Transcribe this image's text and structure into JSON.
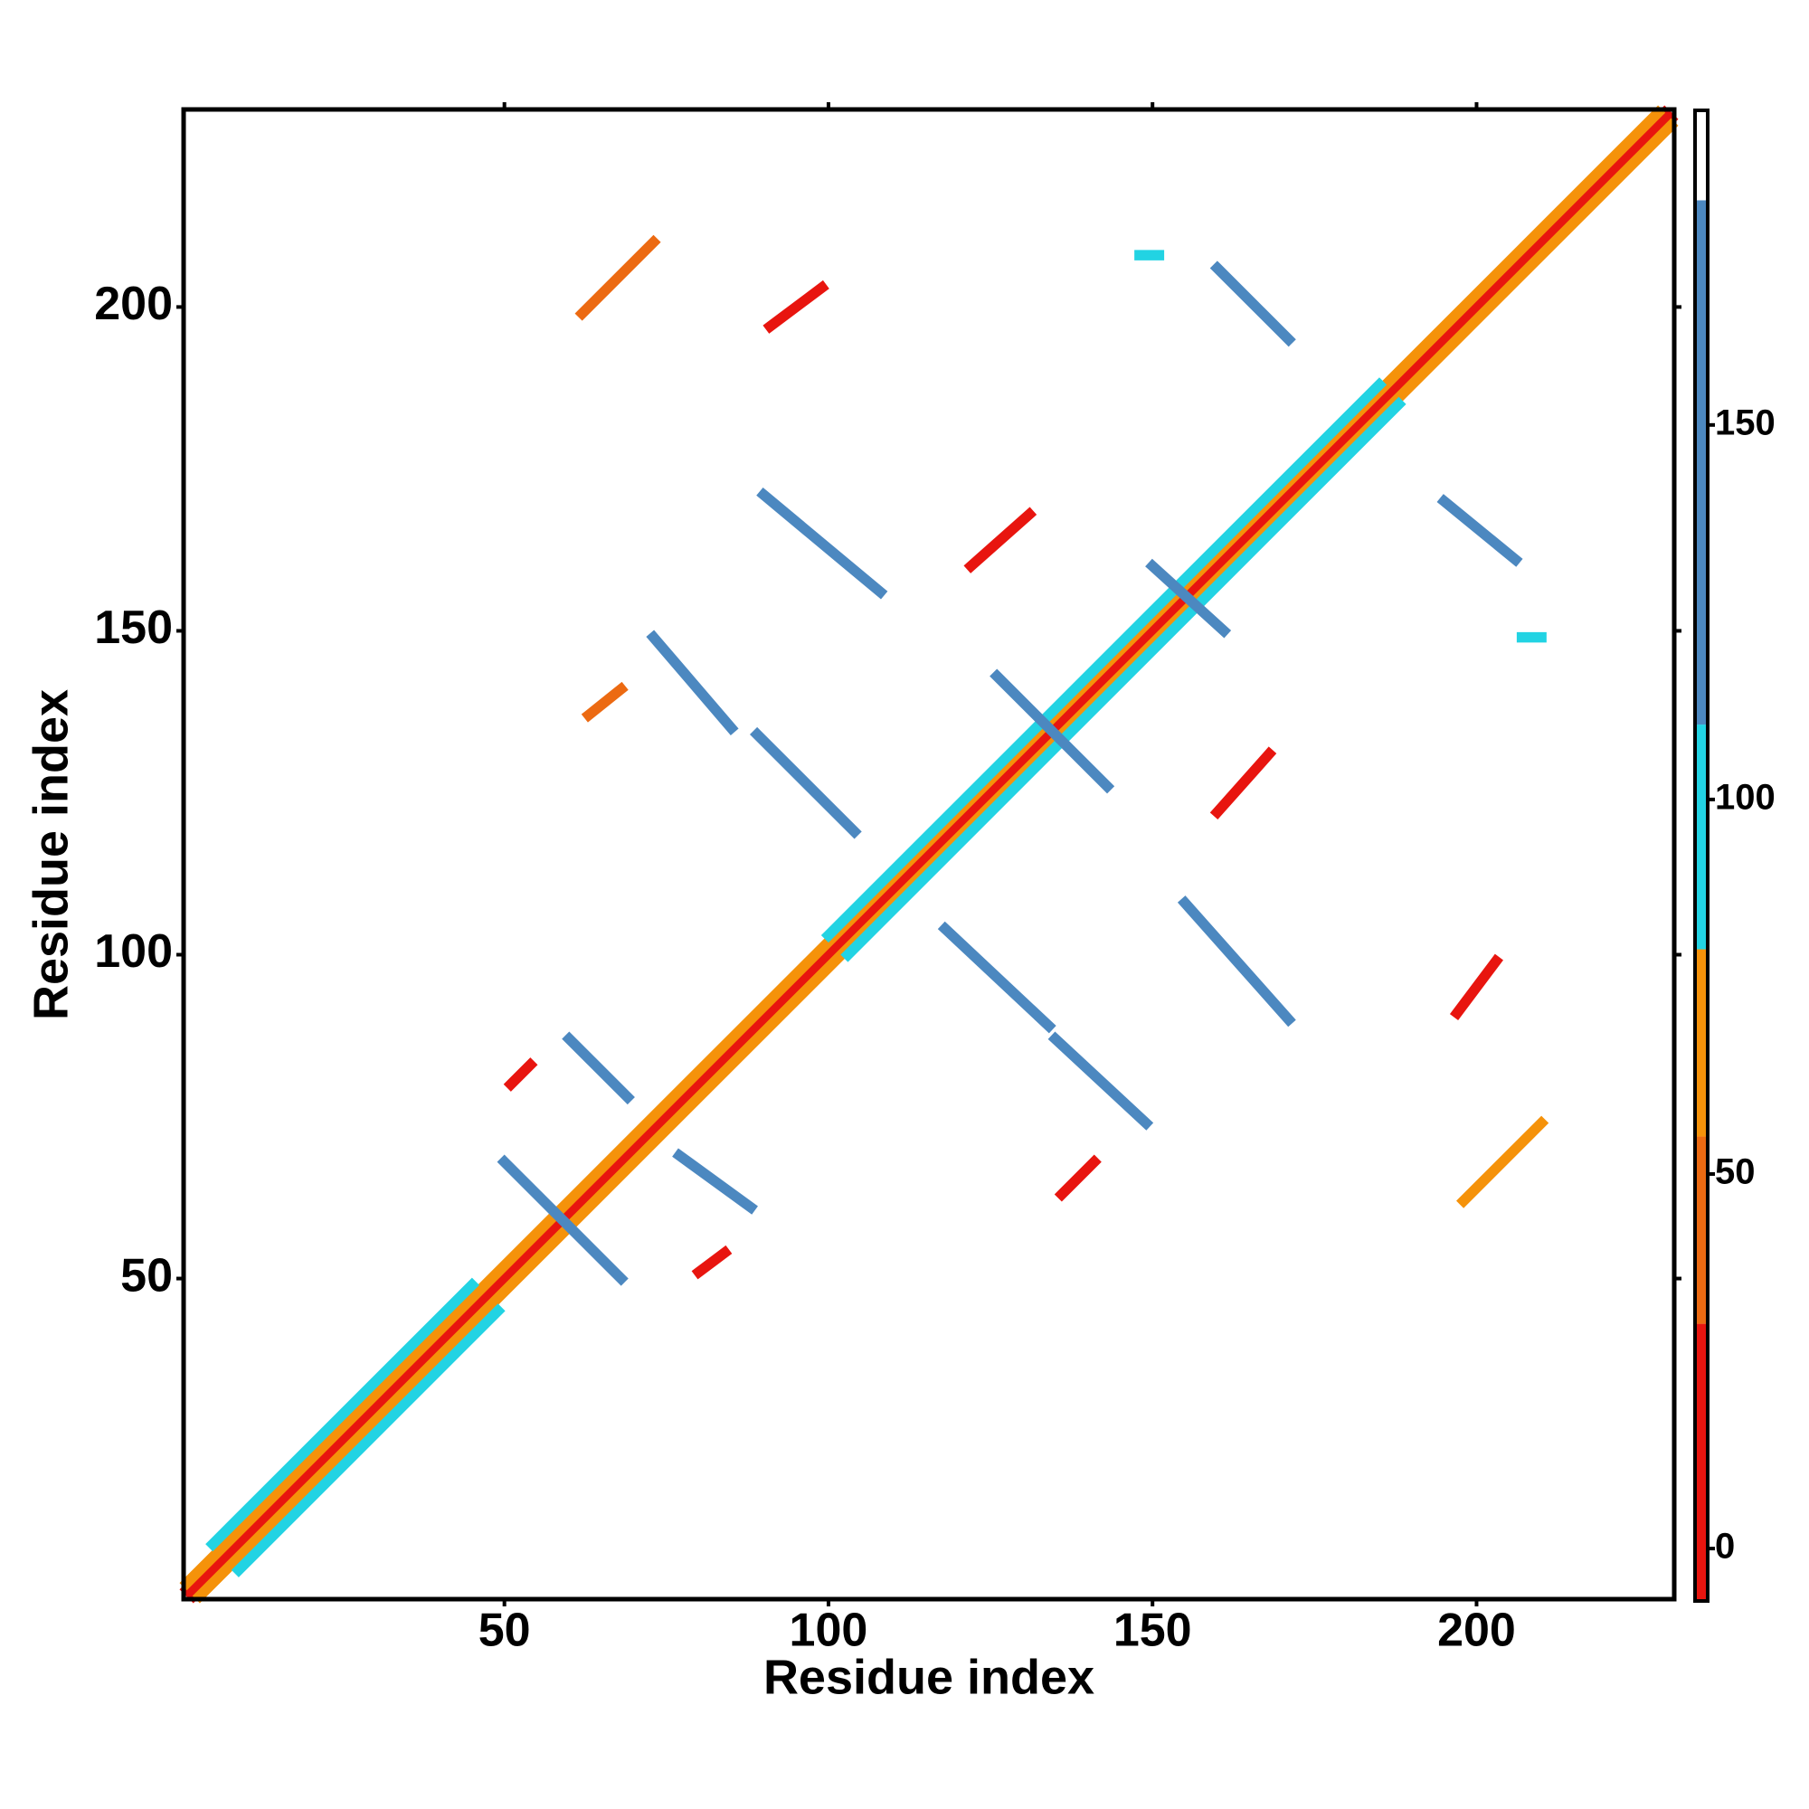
{
  "chart_data": {
    "type": "contact-map",
    "xlabel": "Residue index",
    "ylabel": "Residue index",
    "xlim": [
      0.5,
      230.5
    ],
    "ylim": [
      0.5,
      230.5
    ],
    "xticks": [
      50,
      100,
      150,
      200
    ],
    "yticks": [
      50,
      100,
      150,
      200
    ],
    "colorbar": {
      "clim": [
        -7,
        192
      ],
      "ticks": [
        0,
        50,
        100,
        150
      ],
      "bands": [
        {
          "from": -7,
          "to": 30,
          "color": "#e8150f"
        },
        {
          "from": 30,
          "to": 55,
          "color": "#ec6a12"
        },
        {
          "from": 55,
          "to": 80,
          "color": "#f5920a"
        },
        {
          "from": 80,
          "to": 110,
          "color": "#22d3e3"
        },
        {
          "from": 110,
          "to": 180,
          "color": "#4c88c0"
        },
        {
          "from": 180,
          "to": 192,
          "color": "#ffffff"
        }
      ]
    },
    "segments": [
      {
        "x": [
          1,
          229
        ],
        "y": [
          2,
          230
        ],
        "value": 0
      },
      {
        "x": [
          2,
          230
        ],
        "y": [
          1,
          229
        ],
        "value": 0
      },
      {
        "x": [
          1,
          228
        ],
        "y": [
          3,
          230
        ],
        "value": 60
      },
      {
        "x": [
          3,
          230
        ],
        "y": [
          1,
          228
        ],
        "value": 60
      },
      {
        "x": [
          5,
          45
        ],
        "y": [
          9,
          49
        ],
        "value": 100
      },
      {
        "x": [
          9,
          49
        ],
        "y": [
          5,
          45
        ],
        "value": 100
      },
      {
        "x": [
          100,
          185
        ],
        "y": [
          103,
          188
        ],
        "value": 100
      },
      {
        "x": [
          103,
          188
        ],
        "y": [
          100,
          185
        ],
        "value": 100
      },
      {
        "x": [
          50,
          68
        ],
        "y": [
          68,
          50
        ],
        "value": 140
      },
      {
        "x": [
          60,
          69
        ],
        "y": [
          87,
          78
        ],
        "value": 140
      },
      {
        "x": [
          77,
          88
        ],
        "y": [
          69,
          61
        ],
        "value": 140
      },
      {
        "x": [
          90,
          108
        ],
        "y": [
          171,
          156
        ],
        "value": 140
      },
      {
        "x": [
          73,
          85
        ],
        "y": [
          149,
          135
        ],
        "value": 140
      },
      {
        "x": [
          89,
          104
        ],
        "y": [
          134,
          119
        ],
        "value": 140
      },
      {
        "x": [
          118,
          134
        ],
        "y": [
          104,
          89
        ],
        "value": 140
      },
      {
        "x": [
          135,
          149
        ],
        "y": [
          87,
          74
        ],
        "value": 140
      },
      {
        "x": [
          155,
          171
        ],
        "y": [
          108,
          90
        ],
        "value": 140
      },
      {
        "x": [
          160,
          171
        ],
        "y": [
          206,
          195
        ],
        "value": 140
      },
      {
        "x": [
          195,
          206
        ],
        "y": [
          170,
          161
        ],
        "value": 140
      },
      {
        "x": [
          150,
          161
        ],
        "y": [
          160,
          150
        ],
        "value": 140
      },
      {
        "x": [
          126,
          143
        ],
        "y": [
          143,
          126
        ],
        "value": 140
      },
      {
        "x": [
          62,
          73
        ],
        "y": [
          199,
          210
        ],
        "value": 45
      },
      {
        "x": [
          91,
          99
        ],
        "y": [
          197,
          203
        ],
        "value": 10
      },
      {
        "x": [
          63,
          68
        ],
        "y": [
          137,
          141
        ],
        "value": 40
      },
      {
        "x": [
          122,
          131
        ],
        "y": [
          160,
          168
        ],
        "value": 20
      },
      {
        "x": [
          160,
          168
        ],
        "y": [
          122,
          131
        ],
        "value": 20
      },
      {
        "x": [
          198,
          210
        ],
        "y": [
          62,
          74
        ],
        "value": 60
      },
      {
        "x": [
          136,
          141
        ],
        "y": [
          63,
          68
        ],
        "value": 30
      },
      {
        "x": [
          51,
          54
        ],
        "y": [
          80,
          83
        ],
        "value": 20
      },
      {
        "x": [
          80,
          84
        ],
        "y": [
          51,
          54
        ],
        "value": 10
      },
      {
        "x": [
          197,
          203
        ],
        "y": [
          91,
          99
        ],
        "value": 10
      },
      {
        "x": [
          148,
          151
        ],
        "y": [
          208,
          208
        ],
        "value": 100
      },
      {
        "x": [
          207,
          210
        ],
        "y": [
          149,
          149
        ],
        "value": 100
      }
    ]
  }
}
